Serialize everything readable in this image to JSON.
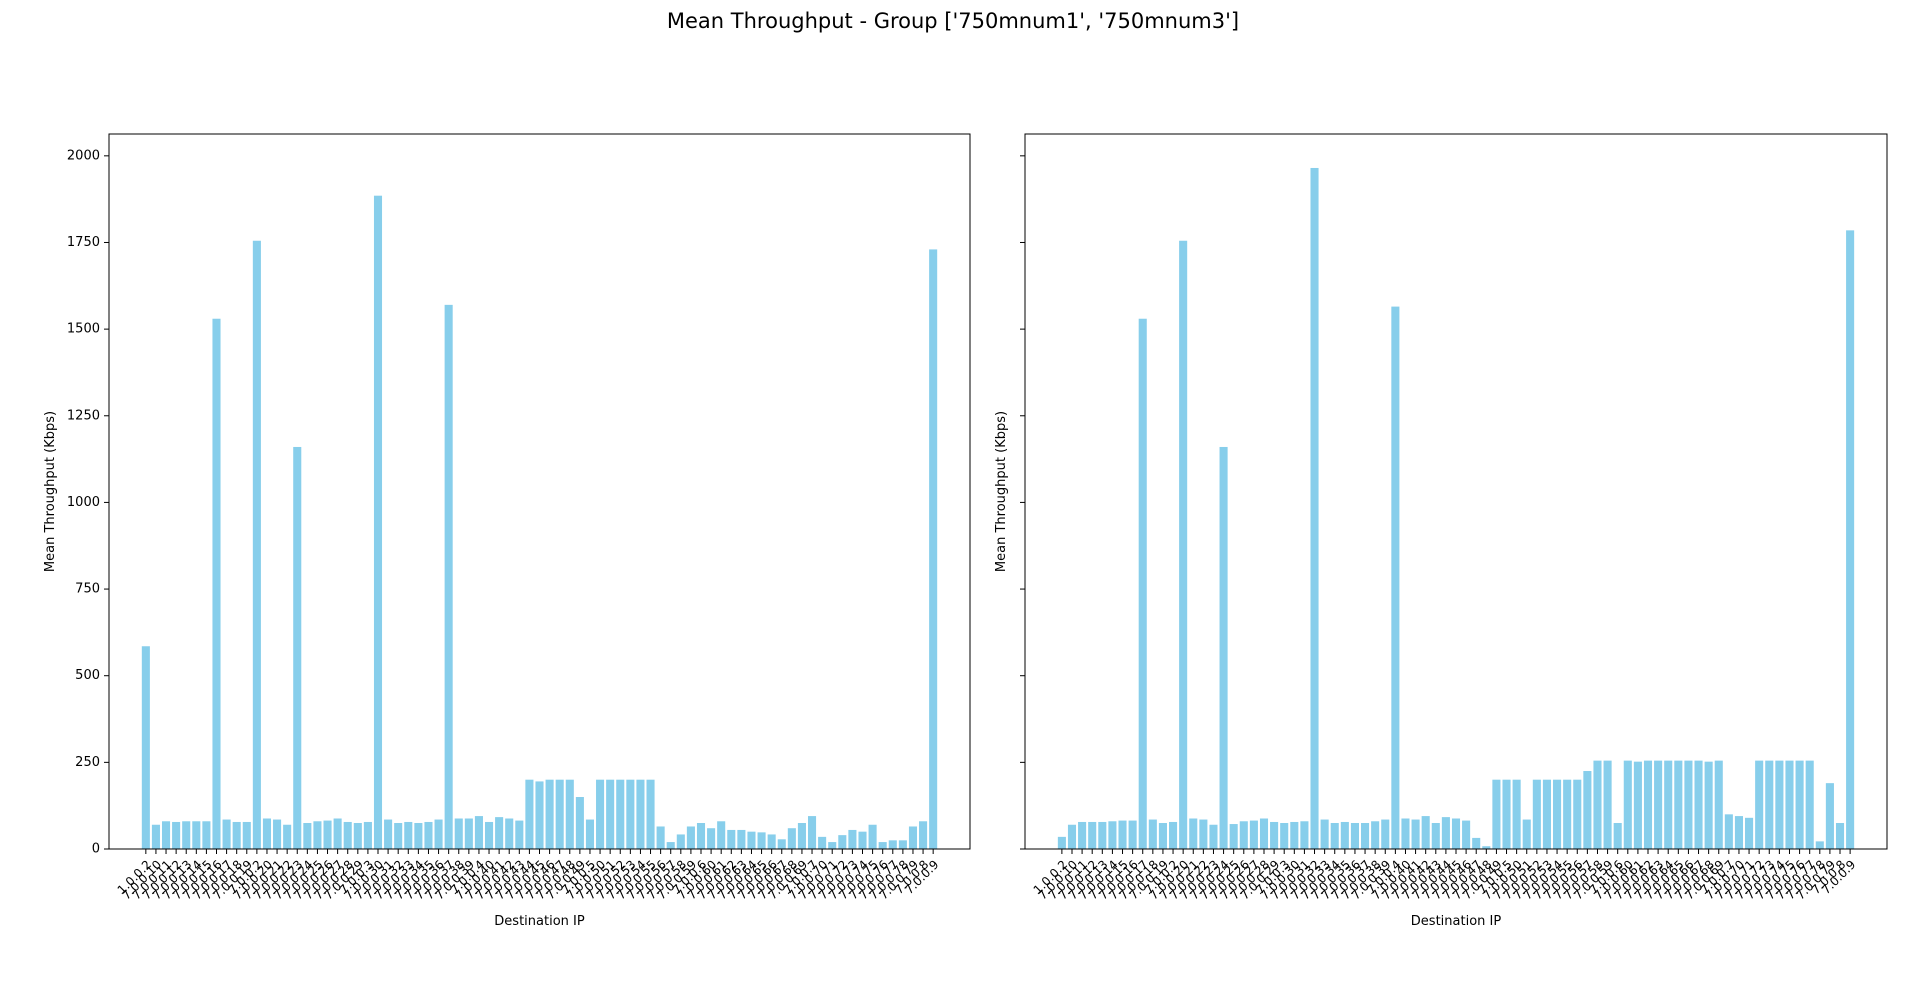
{
  "title": "Mean Throughput - Group ['750mnum1', '750mnum3']",
  "chart_data": [
    {
      "type": "bar",
      "xlabel": "Destination IP",
      "ylabel": "Mean Throughput (Kbps)",
      "color": "#87ceeb",
      "categories": [
        "1.0.0.2",
        "7.0.0.10",
        "7.0.0.11",
        "7.0.0.12",
        "7.0.0.13",
        "7.0.0.14",
        "7.0.0.15",
        "7.0.0.16",
        "7.0.0.17",
        "7.0.0.18",
        "7.0.0.19",
        "7.0.0.2",
        "7.0.0.20",
        "7.0.0.21",
        "7.0.0.22",
        "7.0.0.23",
        "7.0.0.24",
        "7.0.0.25",
        "7.0.0.26",
        "7.0.0.27",
        "7.0.0.28",
        "7.0.0.29",
        "7.0.0.3",
        "7.0.0.30",
        "7.0.0.31",
        "7.0.0.32",
        "7.0.0.33",
        "7.0.0.34",
        "7.0.0.35",
        "7.0.0.36",
        "7.0.0.37",
        "7.0.0.38",
        "7.0.0.39",
        "7.0.0.4",
        "7.0.0.40",
        "7.0.0.41",
        "7.0.0.42",
        "7.0.0.43",
        "7.0.0.44",
        "7.0.0.45",
        "7.0.0.46",
        "7.0.0.47",
        "7.0.0.48",
        "7.0.0.49",
        "7.0.0.5",
        "7.0.0.50",
        "7.0.0.51",
        "7.0.0.52",
        "7.0.0.53",
        "7.0.0.54",
        "7.0.0.55",
        "7.0.0.56",
        "7.0.0.57",
        "7.0.0.58",
        "7.0.0.59",
        "7.0.0.6",
        "7.0.0.60",
        "7.0.0.61",
        "7.0.0.62",
        "7.0.0.63",
        "7.0.0.64",
        "7.0.0.65",
        "7.0.0.66",
        "7.0.0.67",
        "7.0.0.68",
        "7.0.0.69",
        "7.0.0.7",
        "7.0.0.70",
        "7.0.0.71",
        "7.0.0.72",
        "7.0.0.73",
        "7.0.0.74",
        "7.0.0.75",
        "7.0.0.76",
        "7.0.0.77",
        "7.0.0.78",
        "7.0.0.79",
        "7.0.0.8",
        "7.0.0.9"
      ],
      "values": [
        585,
        70,
        80,
        78,
        80,
        80,
        80,
        1530,
        85,
        78,
        78,
        1755,
        88,
        85,
        70,
        1160,
        75,
        80,
        82,
        88,
        78,
        75,
        78,
        1885,
        85,
        75,
        78,
        75,
        78,
        85,
        1570,
        88,
        88,
        95,
        78,
        92,
        88,
        82,
        200,
        195,
        200,
        200,
        200,
        150,
        85,
        200,
        200,
        200,
        200,
        200,
        200,
        65,
        20,
        42,
        65,
        75,
        60,
        80,
        55,
        55,
        50,
        48,
        42,
        28,
        60,
        75,
        95,
        35,
        20,
        40,
        55,
        50,
        70,
        20,
        25,
        25,
        65,
        80,
        1730
      ],
      "ylim": [
        0,
        2063
      ],
      "yticks": [
        0,
        250,
        500,
        750,
        1000,
        1250,
        1500,
        1750,
        2000
      ],
      "ytick_labels": true
    },
    {
      "type": "bar",
      "xlabel": "Destination IP",
      "ylabel": "Mean Throughput (Kbps)",
      "color": "#87ceeb",
      "categories": [
        "1.0.0.2",
        "7.0.0.10",
        "7.0.0.11",
        "7.0.0.12",
        "7.0.0.13",
        "7.0.0.14",
        "7.0.0.15",
        "7.0.0.16",
        "7.0.0.17",
        "7.0.0.18",
        "7.0.0.19",
        "7.0.0.2",
        "7.0.0.20",
        "7.0.0.21",
        "7.0.0.22",
        "7.0.0.23",
        "7.0.0.24",
        "7.0.0.25",
        "7.0.0.26",
        "7.0.0.27",
        "7.0.0.28",
        "7.0.0.29",
        "7.0.0.3",
        "7.0.0.30",
        "7.0.0.31",
        "7.0.0.32",
        "7.0.0.33",
        "7.0.0.34",
        "7.0.0.35",
        "7.0.0.36",
        "7.0.0.37",
        "7.0.0.38",
        "7.0.0.39",
        "7.0.0.4",
        "7.0.0.40",
        "7.0.0.41",
        "7.0.0.42",
        "7.0.0.43",
        "7.0.0.44",
        "7.0.0.45",
        "7.0.0.46",
        "7.0.0.47",
        "7.0.0.48",
        "7.0.0.49",
        "7.0.0.5",
        "7.0.0.50",
        "7.0.0.51",
        "7.0.0.52",
        "7.0.0.53",
        "7.0.0.54",
        "7.0.0.55",
        "7.0.0.56",
        "7.0.0.57",
        "7.0.0.58",
        "7.0.0.59",
        "7.0.0.6",
        "7.0.0.60",
        "7.0.0.61",
        "7.0.0.62",
        "7.0.0.63",
        "7.0.0.64",
        "7.0.0.65",
        "7.0.0.66",
        "7.0.0.67",
        "7.0.0.68",
        "7.0.0.69",
        "7.0.0.7",
        "7.0.0.70",
        "7.0.0.71",
        "7.0.0.72",
        "7.0.0.73",
        "7.0.0.74",
        "7.0.0.75",
        "7.0.0.76",
        "7.0.0.77",
        "7.0.0.78",
        "7.0.0.79",
        "7.0.0.8",
        "7.0.0.9"
      ],
      "values": [
        35,
        70,
        78,
        78,
        78,
        80,
        82,
        82,
        1530,
        85,
        75,
        78,
        1755,
        88,
        85,
        70,
        1160,
        72,
        80,
        82,
        88,
        78,
        75,
        78,
        80,
        1965,
        85,
        75,
        78,
        75,
        75,
        80,
        85,
        1565,
        88,
        85,
        95,
        75,
        92,
        88,
        82,
        32,
        8,
        200,
        200,
        200,
        85,
        200,
        200,
        200,
        200,
        200,
        225,
        255,
        255,
        75,
        255,
        252,
        255,
        255,
        255,
        255,
        255,
        255,
        252,
        255,
        100,
        95,
        90,
        255,
        255,
        255,
        255,
        255,
        255,
        22,
        190,
        75,
        1785
      ],
      "ylim": [
        0,
        2063
      ],
      "yticks": [
        0,
        250,
        500,
        750,
        1000,
        1250,
        1500,
        1750,
        2000
      ],
      "ytick_labels": false
    }
  ]
}
